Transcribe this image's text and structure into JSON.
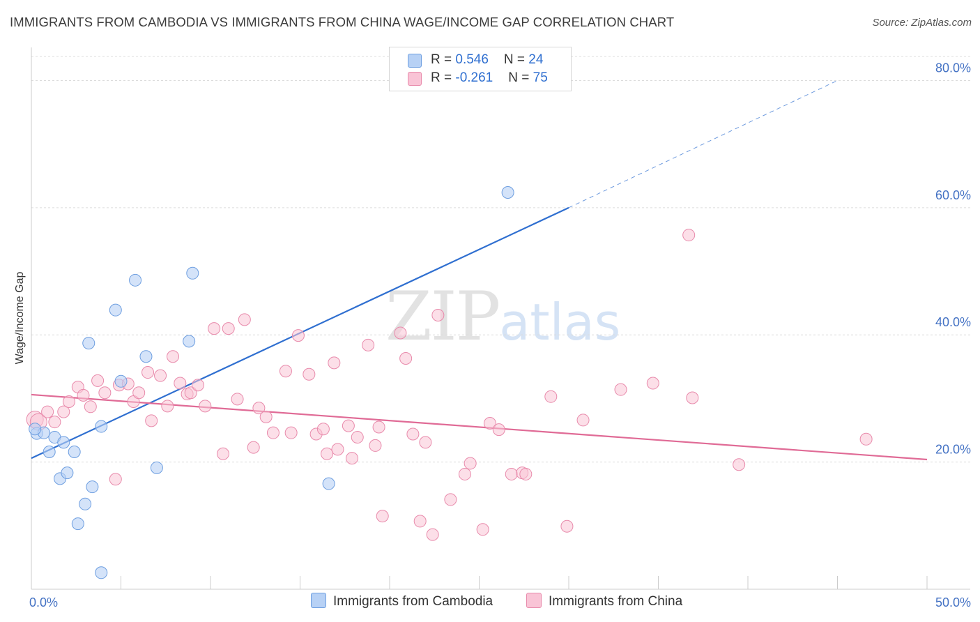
{
  "header": {
    "title": "IMMIGRANTS FROM CAMBODIA VS IMMIGRANTS FROM CHINA WAGE/INCOME GAP CORRELATION CHART",
    "source": "Source: ZipAtlas.com"
  },
  "watermark": {
    "zip": "ZIP",
    "atlas": "atlas"
  },
  "legend": {
    "rows": [
      {
        "r_label": "R = ",
        "r_value": "0.546",
        "n_label": "N = ",
        "n_value": "24"
      },
      {
        "r_label": "R = ",
        "r_value": "-0.261",
        "n_label": "N = ",
        "n_value": "75"
      }
    ]
  },
  "bottom_legend": {
    "cambodia": "Immigrants from Cambodia",
    "china": "Immigrants from China"
  },
  "chart_data": {
    "type": "scatter",
    "title": "IMMIGRANTS FROM CAMBODIA VS IMMIGRANTS FROM CHINA WAGE/INCOME GAP CORRELATION CHART",
    "xlabel": "",
    "ylabel": "Wage/Income Gap",
    "xlim": [
      0,
      50
    ],
    "ylim": [
      0,
      84
    ],
    "x_tick_labels": [
      "0.0%",
      "50.0%"
    ],
    "y_ticks": [
      20,
      40,
      60,
      80
    ],
    "y_tick_labels": [
      "20.0%",
      "40.0%",
      "60.0%",
      "80.0%"
    ],
    "grid": true,
    "legend_position": "top-center",
    "colors": {
      "cambodia_fill": "#b7d1f5",
      "cambodia_stroke": "#6d9ee0",
      "cambodia_line": "#2f6fd0",
      "china_fill": "#f9c4d6",
      "china_stroke": "#e88aab",
      "china_line": "#e06b96"
    },
    "series": [
      {
        "name": "Immigrants from Cambodia",
        "points": [
          [
            0.3,
            24.5
          ],
          [
            0.7,
            24.6
          ],
          [
            1.0,
            21.6
          ],
          [
            1.3,
            23.9
          ],
          [
            1.6,
            17.4
          ],
          [
            1.8,
            23.1
          ],
          [
            2.0,
            18.3
          ],
          [
            2.4,
            21.6
          ],
          [
            2.6,
            10.3
          ],
          [
            3.0,
            13.4
          ],
          [
            3.2,
            38.7
          ],
          [
            3.4,
            16.1
          ],
          [
            3.9,
            25.6
          ],
          [
            4.7,
            43.9
          ],
          [
            5.0,
            32.7
          ],
          [
            5.8,
            48.6
          ],
          [
            6.4,
            36.6
          ],
          [
            7.0,
            19.1
          ],
          [
            8.8,
            39.0
          ],
          [
            9.0,
            49.7
          ],
          [
            16.6,
            16.6
          ],
          [
            26.6,
            62.4
          ],
          [
            3.9,
            2.6
          ],
          [
            0.2,
            25.2
          ]
        ]
      },
      {
        "name": "Immigrants from China",
        "points": [
          [
            0.2,
            26.7
          ],
          [
            0.4,
            26.3
          ],
          [
            0.9,
            27.9
          ],
          [
            1.3,
            26.3
          ],
          [
            1.8,
            27.9
          ],
          [
            2.1,
            29.5
          ],
          [
            2.6,
            31.8
          ],
          [
            2.9,
            30.5
          ],
          [
            3.3,
            28.7
          ],
          [
            3.7,
            32.8
          ],
          [
            4.1,
            30.9
          ],
          [
            4.7,
            17.3
          ],
          [
            4.9,
            32.1
          ],
          [
            5.4,
            32.3
          ],
          [
            5.7,
            29.5
          ],
          [
            6.0,
            30.9
          ],
          [
            6.5,
            34.1
          ],
          [
            6.7,
            26.5
          ],
          [
            7.2,
            33.6
          ],
          [
            7.6,
            28.8
          ],
          [
            7.9,
            36.6
          ],
          [
            8.3,
            32.4
          ],
          [
            8.7,
            30.7
          ],
          [
            8.9,
            30.9
          ],
          [
            9.3,
            32.1
          ],
          [
            9.7,
            28.8
          ],
          [
            10.2,
            41.0
          ],
          [
            10.7,
            21.3
          ],
          [
            11.0,
            41.0
          ],
          [
            11.5,
            29.9
          ],
          [
            11.9,
            42.4
          ],
          [
            12.4,
            22.3
          ],
          [
            12.7,
            28.5
          ],
          [
            13.1,
            27.1
          ],
          [
            13.5,
            24.6
          ],
          [
            14.2,
            34.3
          ],
          [
            14.5,
            24.6
          ],
          [
            14.9,
            39.9
          ],
          [
            15.5,
            33.8
          ],
          [
            15.9,
            24.4
          ],
          [
            16.3,
            25.2
          ],
          [
            16.5,
            21.3
          ],
          [
            16.9,
            35.6
          ],
          [
            17.1,
            22.0
          ],
          [
            17.7,
            25.7
          ],
          [
            17.9,
            20.6
          ],
          [
            18.2,
            23.9
          ],
          [
            18.8,
            38.4
          ],
          [
            19.2,
            22.6
          ],
          [
            19.4,
            25.5
          ],
          [
            19.6,
            11.5
          ],
          [
            20.6,
            40.3
          ],
          [
            20.9,
            36.3
          ],
          [
            21.3,
            24.4
          ],
          [
            21.7,
            10.7
          ],
          [
            22.0,
            23.1
          ],
          [
            22.4,
            8.6
          ],
          [
            22.7,
            43.1
          ],
          [
            23.4,
            14.1
          ],
          [
            24.2,
            18.1
          ],
          [
            24.5,
            19.8
          ],
          [
            25.2,
            9.4
          ],
          [
            25.6,
            26.1
          ],
          [
            26.1,
            25.1
          ],
          [
            26.8,
            18.1
          ],
          [
            27.4,
            18.3
          ],
          [
            27.6,
            18.1
          ],
          [
            29.0,
            30.3
          ],
          [
            29.9,
            9.9
          ],
          [
            30.8,
            26.6
          ],
          [
            32.9,
            31.4
          ],
          [
            34.7,
            32.4
          ],
          [
            36.7,
            55.7
          ],
          [
            36.9,
            30.1
          ],
          [
            39.5,
            19.6
          ],
          [
            46.6,
            23.6
          ]
        ]
      }
    ],
    "trendlines": [
      {
        "name": "Immigrants from Cambodia",
        "x": [
          0,
          30
        ],
        "y": [
          20.6,
          60.0
        ],
        "dashed_to": [
          45,
          80.0
        ]
      },
      {
        "name": "Immigrants from China",
        "x": [
          0,
          50
        ],
        "y": [
          30.6,
          20.4
        ]
      }
    ]
  }
}
